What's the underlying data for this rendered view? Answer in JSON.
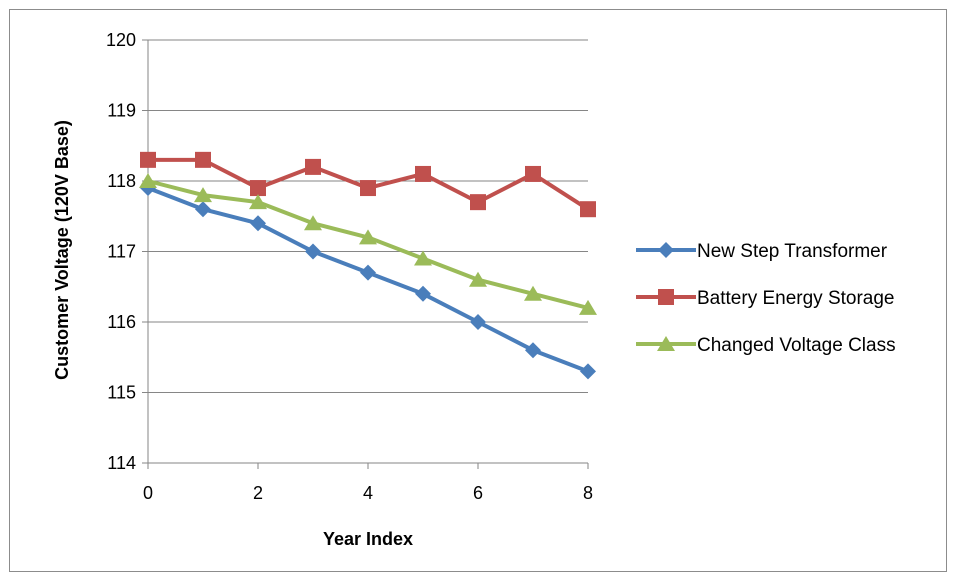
{
  "chart_data": {
    "type": "line",
    "title": "",
    "xlabel": "Year Index",
    "ylabel": "Customer Voltage (120V Base)",
    "xlim": [
      0,
      8
    ],
    "ylim": [
      114,
      120
    ],
    "x_ticks": [
      0,
      2,
      4,
      6,
      8
    ],
    "y_ticks": [
      114,
      115,
      116,
      117,
      118,
      119,
      120
    ],
    "x": [
      0,
      1,
      2,
      3,
      4,
      5,
      6,
      7,
      8
    ],
    "grid": "horizontal",
    "legend_position": "right",
    "series": [
      {
        "name": "New Step Transformer",
        "color": "#4a7ebb",
        "marker": "diamond",
        "values": [
          117.9,
          117.6,
          117.4,
          117.0,
          116.7,
          116.4,
          116.0,
          115.6,
          115.3
        ]
      },
      {
        "name": "Battery Energy Storage",
        "color": "#c0504d",
        "marker": "square",
        "values": [
          118.3,
          118.3,
          117.9,
          118.2,
          117.9,
          118.1,
          117.7,
          118.1,
          117.6
        ]
      },
      {
        "name": "Changed Voltage Class",
        "color": "#9bbb59",
        "marker": "triangle",
        "values": [
          118.0,
          117.8,
          117.7,
          117.4,
          117.2,
          116.9,
          116.6,
          116.4,
          116.2
        ]
      }
    ]
  }
}
